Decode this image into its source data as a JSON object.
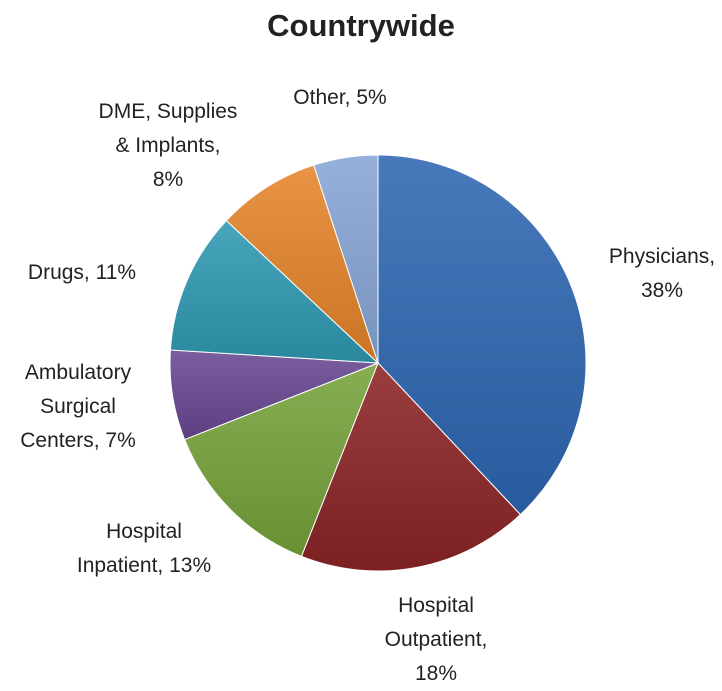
{
  "chart_data": {
    "type": "pie",
    "title": "Countrywide",
    "slices": [
      {
        "name": "Physicians",
        "value": 38,
        "color": "#2E67B2",
        "label_lines": [
          "Physicians,",
          "38%"
        ]
      },
      {
        "name": "Hospital Outpatient",
        "value": 18,
        "color": "#8C2426",
        "label_lines": [
          "Hospital",
          "Outpatient,",
          "18%"
        ]
      },
      {
        "name": "Hospital Inpatient",
        "value": 13,
        "color": "#77A33A",
        "label_lines": [
          "Hospital",
          "Inpatient, 13%"
        ]
      },
      {
        "name": "Ambulatory Surgical Centers",
        "value": 7,
        "color": "#684892",
        "label_lines": [
          "Ambulatory",
          "Surgical",
          "Centers, 7%"
        ]
      },
      {
        "name": "Drugs",
        "value": 11,
        "color": "#2F9AB3",
        "label_lines": [
          "Drugs, 11%"
        ]
      },
      {
        "name": "DME, Supplies & Implants",
        "value": 8,
        "color": "#E6842B",
        "label_lines": [
          "DME, Supplies",
          "& Implants,",
          "8%"
        ]
      },
      {
        "name": "Other",
        "value": 5,
        "color": "#87A6D6",
        "label_lines": [
          "Other, 5%"
        ]
      }
    ],
    "start_angle_deg": 0,
    "direction": "clockwise",
    "legend": "none"
  }
}
